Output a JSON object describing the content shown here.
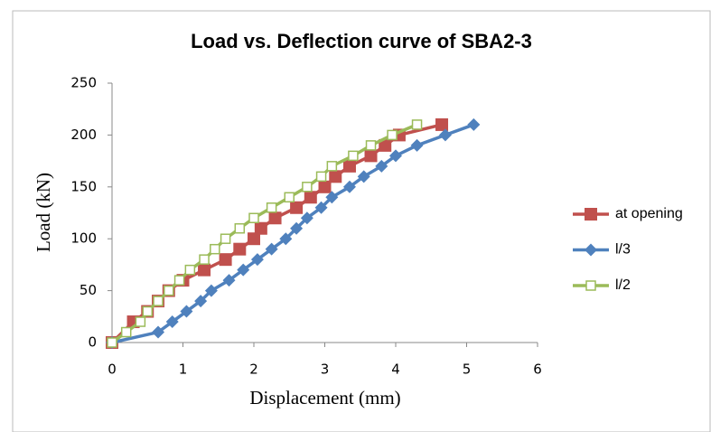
{
  "chart_data": {
    "type": "line",
    "title": "Load vs. Deflection curve of SBA2-3",
    "x_label": "Displacement (mm)",
    "y_label": "Load (kN)",
    "xlim": [
      0,
      6
    ],
    "xticks": [
      0,
      1,
      2,
      3,
      4,
      5,
      6
    ],
    "ylim": [
      0,
      250
    ],
    "yticks": [
      0,
      50,
      100,
      150,
      200,
      250
    ],
    "grid": false,
    "legend": "right",
    "series": [
      {
        "name": "at opening",
        "color": "#c0504d",
        "marker": "square",
        "x": [
          0,
          0.3,
          0.5,
          0.65,
          0.8,
          1.0,
          1.3,
          1.6,
          1.8,
          2.0,
          2.1,
          2.3,
          2.6,
          2.8,
          3.0,
          3.15,
          3.35,
          3.65,
          3.85,
          4.05,
          4.65
        ],
        "values": [
          0,
          20,
          30,
          40,
          50,
          60,
          70,
          80,
          90,
          100,
          110,
          120,
          130,
          140,
          150,
          160,
          170,
          180,
          190,
          200,
          210
        ]
      },
      {
        "name": "l/3",
        "color": "#4f81bd",
        "marker": "diamond",
        "x": [
          0,
          0.65,
          0.85,
          1.05,
          1.25,
          1.4,
          1.65,
          1.85,
          2.05,
          2.25,
          2.45,
          2.6,
          2.75,
          2.95,
          3.1,
          3.35,
          3.55,
          3.8,
          4.0,
          4.3,
          4.7,
          5.1
        ],
        "values": [
          0,
          10,
          20,
          30,
          40,
          50,
          60,
          70,
          80,
          90,
          100,
          110,
          120,
          130,
          140,
          150,
          160,
          170,
          180,
          190,
          200,
          210
        ]
      },
      {
        "name": "l/2",
        "color": "#9bbb59",
        "marker": "open-square",
        "x": [
          0,
          0.2,
          0.4,
          0.5,
          0.65,
          0.8,
          0.95,
          1.1,
          1.3,
          1.45,
          1.6,
          1.8,
          2.0,
          2.25,
          2.5,
          2.75,
          2.95,
          3.1,
          3.4,
          3.65,
          3.95,
          4.3
        ],
        "values": [
          0,
          10,
          20,
          30,
          40,
          50,
          60,
          70,
          80,
          90,
          100,
          110,
          120,
          130,
          140,
          150,
          160,
          170,
          180,
          190,
          200,
          210
        ]
      }
    ]
  }
}
